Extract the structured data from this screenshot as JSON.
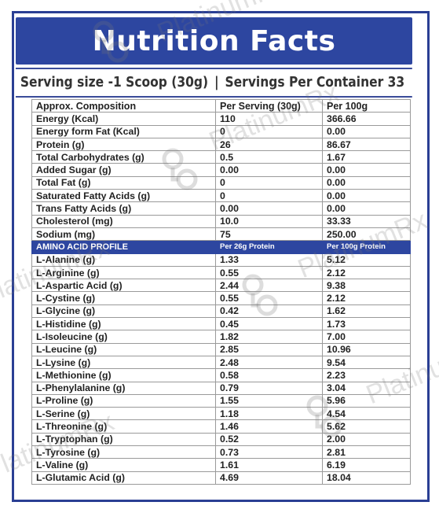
{
  "title": "Nutrition Facts",
  "serving": {
    "size": "Serving size -1 Scoop (30g)",
    "separator": "|",
    "per_container": "Servings Per Container 33"
  },
  "composition": {
    "header": [
      "Approx. Composition",
      "Per Serving  (30g)",
      "Per 100g"
    ],
    "rows": [
      [
        "Energy (Kcal)",
        "110",
        "366.66"
      ],
      [
        "Energy form Fat (Kcal)",
        "0",
        "0.00"
      ],
      [
        "Protein (g)",
        "26",
        "86.67"
      ],
      [
        "Total Carbohydrates (g)",
        "0.5",
        "1.67"
      ],
      [
        "Added Sugar (g)",
        "0.00",
        "0.00"
      ],
      [
        "Total Fat (g)",
        "0",
        "0.00"
      ],
      [
        "Saturated Fatty Acids (g)",
        "0",
        "0.00"
      ],
      [
        "Trans Fatty Acids (g)",
        "0.00",
        "0.00"
      ],
      [
        "Cholesterol (mg)",
        "10.0",
        "33.33"
      ],
      [
        "Sodium (mg)",
        "75",
        "250.00"
      ]
    ]
  },
  "amino": {
    "header": [
      "AMINO ACID PROFILE",
      "Per 26g Protein",
      "Per 100g Protein"
    ],
    "rows": [
      [
        "L-Alanine (g)",
        "1.33",
        "5.12"
      ],
      [
        "L-Arginine (g)",
        "0.55",
        "2.12"
      ],
      [
        "L-Aspartic Acid (g)",
        "2.44",
        "9.38"
      ],
      [
        "L-Cystine (g)",
        "0.55",
        "2.12"
      ],
      [
        "L-Glycine (g)",
        "0.42",
        "1.62"
      ],
      [
        "L-Histidine (g)",
        "0.45",
        "1.73"
      ],
      [
        "L-Isoleucine (g)",
        "1.82",
        "7.00"
      ],
      [
        "L-Leucine (g)",
        "2.85",
        "10.96"
      ],
      [
        "L-Lysine (g)",
        "2.48",
        "9.54"
      ],
      [
        "L-Methionine (g)",
        "0.58",
        "2.23"
      ],
      [
        "L-Phenylalanine (g)",
        "0.79",
        "3.04"
      ],
      [
        "L-Proline (g)",
        "1.55",
        "5.96"
      ],
      [
        "L-Serine (g)",
        "1.18",
        "4.54"
      ],
      [
        "L-Threonine (g)",
        "1.46",
        "5.62"
      ],
      [
        "L-Tryptophan (g)",
        "0.52",
        "2.00"
      ],
      [
        "L-Tyrosine (g)",
        "0.73",
        "2.81"
      ],
      [
        "L-Valine (g)",
        "1.61",
        "6.19"
      ],
      [
        "L-Glutamic Acid (g)",
        "4.69",
        "18.04"
      ]
    ]
  },
  "watermark": {
    "text": "PlatinumRx"
  },
  "colors": {
    "accent": "#2d46a0",
    "border": "#2a3f94"
  }
}
